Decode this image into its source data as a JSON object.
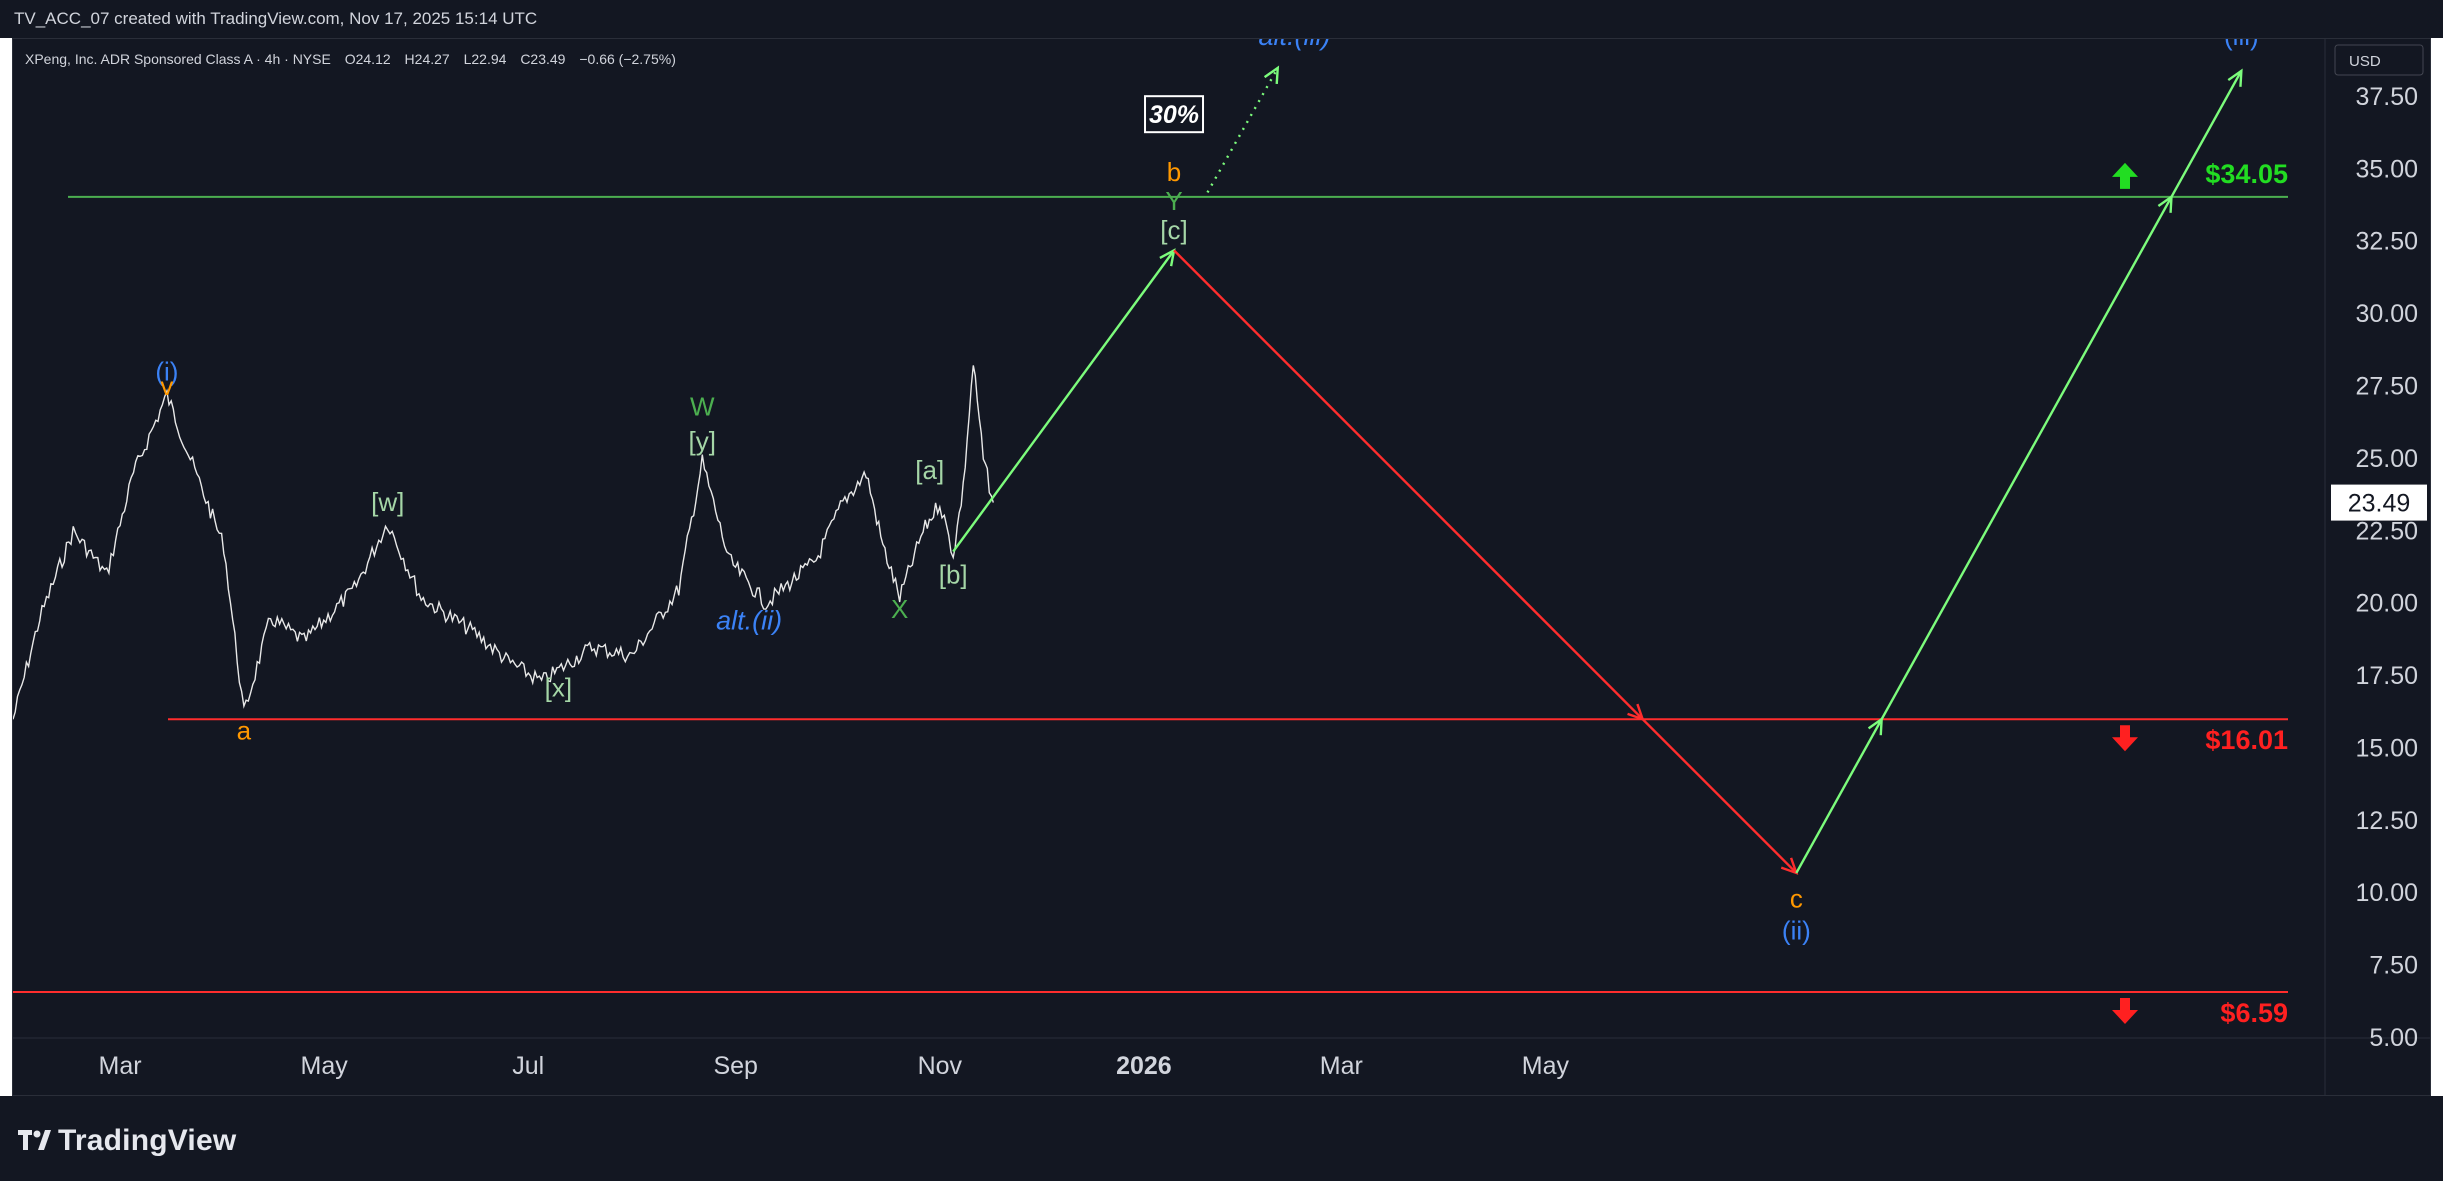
{
  "header": {
    "publisher_line": "TV_ACC_07 created with TradingView.com, Nov 17, 2025 15:14 UTC"
  },
  "legend": {
    "symbol": "XPeng, Inc. ADR Sponsored Class A · 4h · NYSE",
    "open": "O24.12",
    "high": "H24.27",
    "low": "L22.94",
    "close": "C23.49",
    "change": "−0.66 (−2.75%)"
  },
  "price_axis": {
    "currency": "USD",
    "ticks": [
      "37.50",
      "35.00",
      "32.50",
      "30.00",
      "27.50",
      "25.00",
      "22.50",
      "20.00",
      "17.50",
      "15.00",
      "12.50",
      "10.00",
      "7.50",
      "5.00"
    ],
    "last_price": "23.49"
  },
  "time_axis": {
    "ticks": [
      "Mar",
      "May",
      "Jul",
      "Sep",
      "Nov",
      "2026",
      "Mar",
      "May"
    ]
  },
  "chart_data": {
    "type": "line",
    "title": "XPeng, Inc. ADR Sponsored Class A · 4h · NYSE",
    "ylim": [
      5,
      39.5
    ],
    "y_unit": "USD",
    "price_path_approx": {
      "description_points": [
        [
          "2025-01-28",
          16.0
        ],
        [
          "2025-02-05",
          19.5
        ],
        [
          "2025-02-15",
          22.5
        ],
        [
          "2025-02-25",
          21.0
        ],
        [
          "2025-03-05",
          24.5
        ],
        [
          "2025-03-15",
          27.2
        ],
        [
          "2025-03-22",
          25.0
        ],
        [
          "2025-04-01",
          22.0
        ],
        [
          "2025-04-07",
          16.2
        ],
        [
          "2025-04-15",
          19.5
        ],
        [
          "2025-04-25",
          18.7
        ],
        [
          "2025-05-10",
          20.5
        ],
        [
          "2025-05-20",
          22.8
        ],
        [
          "2025-05-30",
          20.2
        ],
        [
          "2025-06-15",
          19.0
        ],
        [
          "2025-06-25",
          18.0
        ],
        [
          "2025-07-05",
          17.3
        ],
        [
          "2025-07-20",
          18.5
        ],
        [
          "2025-08-01",
          18.2
        ],
        [
          "2025-08-15",
          20.5
        ],
        [
          "2025-08-22",
          24.9
        ],
        [
          "2025-08-30",
          21.5
        ],
        [
          "2025-09-10",
          20.0
        ],
        [
          "2025-09-25",
          21.5
        ],
        [
          "2025-10-03",
          23.5
        ],
        [
          "2025-10-10",
          24.5
        ],
        [
          "2025-10-15",
          22.0
        ],
        [
          "2025-10-20",
          20.2
        ],
        [
          "2025-10-27",
          22.5
        ],
        [
          "2025-11-01",
          23.5
        ],
        [
          "2025-11-05",
          21.7
        ],
        [
          "2025-11-08",
          24.0
        ],
        [
          "2025-11-11",
          28.3
        ],
        [
          "2025-11-14",
          25.0
        ],
        [
          "2025-11-17",
          23.49
        ]
      ]
    },
    "levels": [
      {
        "name": "$34.05",
        "value": 34.05,
        "color": "#4caf50",
        "arrow": "up"
      },
      {
        "name": "$16.01",
        "value": 16.01,
        "color": "#f23645",
        "arrow": "down"
      },
      {
        "name": "$6.59",
        "value": 6.59,
        "color": "#f23645",
        "arrow": "down"
      }
    ],
    "projection_paths": [
      {
        "color": "#7cfc7c",
        "points": [
          [
            "2025-11-05",
            21.8
          ],
          [
            "2026-01-10",
            32.2
          ]
        ]
      },
      {
        "color": "#ff2d2d",
        "points": [
          [
            "2026-01-10",
            32.2
          ],
          [
            "2026-07-15",
            10.7
          ]
        ]
      },
      {
        "color": "#7cfc7c",
        "points": [
          [
            "2026-07-15",
            10.7
          ],
          [
            "2026-11-25",
            38.4
          ]
        ]
      }
    ],
    "alt_path": {
      "color": "#7cfc7c",
      "style": "dotted",
      "points": [
        [
          "2026-01-20",
          34.2
        ],
        [
          "2026-02-10",
          38.5
        ]
      ]
    },
    "wave_labels": [
      {
        "text": "(i)",
        "color": "#3b82f6",
        "x": "2025-03-15",
        "y": 27.7
      },
      {
        "text": "v",
        "color": "#ff9800",
        "x": "2025-03-15",
        "y": 27.2
      },
      {
        "text": "a",
        "color": "#ff9800",
        "x": "2025-04-07",
        "y": 15.3
      },
      {
        "text": "[w]",
        "color": "#a5d6a7",
        "x": "2025-05-20",
        "y": 23.2
      },
      {
        "text": "[x]",
        "color": "#a5d6a7",
        "x": "2025-07-10",
        "y": 16.8
      },
      {
        "text": "W",
        "color": "#4caf50",
        "x": "2025-08-22",
        "y": 26.5
      },
      {
        "text": "[y]",
        "color": "#a5d6a7",
        "x": "2025-08-22",
        "y": 25.3
      },
      {
        "text": "alt.(ii)",
        "color": "#3b82f6",
        "x": "2025-09-05",
        "y": 19.1
      },
      {
        "text": "X",
        "color": "#4caf50",
        "x": "2025-10-20",
        "y": 19.5
      },
      {
        "text": "[a]",
        "color": "#a5d6a7",
        "x": "2025-10-29",
        "y": 24.3
      },
      {
        "text": "[b]",
        "color": "#a5d6a7",
        "x": "2025-11-05",
        "y": 20.7
      },
      {
        "text": "b",
        "color": "#ff9800",
        "x": "2026-01-10",
        "y": 34.6
      },
      {
        "text": "Y",
        "color": "#4caf50",
        "x": "2026-01-10",
        "y": 33.6
      },
      {
        "text": "[c]",
        "color": "#a5d6a7",
        "x": "2026-01-10",
        "y": 32.6
      },
      {
        "text": "alt.(iii)",
        "color": "#3b82f6",
        "x": "2026-02-15",
        "y": 39.3
      },
      {
        "text": "c",
        "color": "#ff9800",
        "x": "2026-07-15",
        "y": 9.5
      },
      {
        "text": "(ii)",
        "color": "#3b82f6",
        "x": "2026-07-15",
        "y": 8.4
      },
      {
        "text": "(iii)",
        "color": "#3b82f6",
        "x": "2026-11-25",
        "y": 39.3
      }
    ],
    "probability_badge": {
      "text": "30%",
      "x": "2026-01-10",
      "y": 36.8
    }
  },
  "footer": {
    "logo_text": "TradingView"
  },
  "colors": {
    "background": "#131722",
    "text": "#d1d4dc",
    "green": "#4caf50",
    "red": "#f23645",
    "blue": "#3b82f6",
    "orange": "#ff9800",
    "light_green": "#a5d6a7"
  }
}
